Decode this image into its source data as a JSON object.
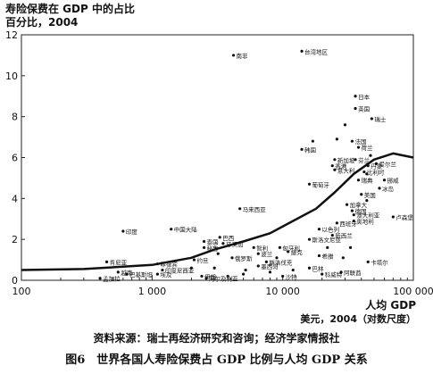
{
  "chart_data": {
    "type": "scatter",
    "title": "寿险保费在 GDP 中的占比",
    "ylabel": "百分比，2004",
    "xlabel": "人均 GDP",
    "xlabel_unit": "美元，2004（对数尺度）",
    "xscale": "log",
    "xlim": [
      100,
      100000
    ],
    "ylim": [
      0,
      12
    ],
    "x_tick_labels": [
      "100",
      "1 000",
      "10 000",
      "100 000"
    ],
    "x_ticks": [
      100,
      1000,
      10000,
      100000
    ],
    "y_tick_labels": [
      "0",
      "2",
      "4",
      "6",
      "8",
      "10",
      "12"
    ],
    "y_ticks": [
      0,
      2,
      4,
      6,
      8,
      10,
      12
    ],
    "grid": false,
    "annotations": [
      {
        "label": "南非",
        "x": 4200,
        "y": 11.0
      },
      {
        "label": "台湾地区",
        "x": 14000,
        "y": 11.2
      },
      {
        "label": "韩国",
        "x": 14000,
        "y": 6.4
      },
      {
        "label": "日本",
        "x": 36000,
        "y": 9.0
      },
      {
        "label": "英国",
        "x": 36000,
        "y": 8.4
      },
      {
        "label": "瑞士",
        "x": 48000,
        "y": 7.9
      },
      {
        "label": "法国",
        "x": 34000,
        "y": 6.8
      },
      {
        "label": "荷兰",
        "x": 38000,
        "y": 6.5
      },
      {
        "label": "新加坡",
        "x": 25000,
        "y": 5.9
      },
      {
        "label": "香港",
        "x": 24000,
        "y": 5.6
      },
      {
        "label": "芬兰",
        "x": 36000,
        "y": 5.9
      },
      {
        "label": "意大利",
        "x": 25000,
        "y": 5.4
      },
      {
        "label": "爱尔兰",
        "x": 52000,
        "y": 5.7
      },
      {
        "label": "丹麦",
        "x": 45000,
        "y": 5.6
      },
      {
        "label": "比利时",
        "x": 42000,
        "y": 5.3
      },
      {
        "label": "瑞典",
        "x": 38000,
        "y": 4.9
      },
      {
        "label": "葡萄牙",
        "x": 16000,
        "y": 4.7
      },
      {
        "label": "挪威",
        "x": 60000,
        "y": 4.9
      },
      {
        "label": "冰岛",
        "x": 55000,
        "y": 4.5
      },
      {
        "label": "美国",
        "x": 40000,
        "y": 4.2
      },
      {
        "label": "加拿大",
        "x": 31000,
        "y": 3.7
      },
      {
        "label": "德国",
        "x": 34000,
        "y": 3.4
      },
      {
        "label": "澳大利亚",
        "x": 35000,
        "y": 3.2
      },
      {
        "label": "奥地利",
        "x": 35000,
        "y": 2.9
      },
      {
        "label": "西班牙",
        "x": 26000,
        "y": 2.8
      },
      {
        "label": "卢森堡",
        "x": 70000,
        "y": 3.1
      },
      {
        "label": "马来西亚",
        "x": 4700,
        "y": 3.5
      },
      {
        "label": "印度",
        "x": 600,
        "y": 2.4
      },
      {
        "label": "中国大陆",
        "x": 1400,
        "y": 2.5
      },
      {
        "label": "以色列",
        "x": 19000,
        "y": 2.5
      },
      {
        "label": "新西兰",
        "x": 24000,
        "y": 2.2
      },
      {
        "label": "斯洛文尼亚",
        "x": 16000,
        "y": 2.0
      },
      {
        "label": "巴西",
        "x": 3300,
        "y": 2.1
      },
      {
        "label": "泰国",
        "x": 2500,
        "y": 1.9
      },
      {
        "label": "牙买加",
        "x": 3500,
        "y": 1.8
      },
      {
        "label": "秘鲁",
        "x": 2500,
        "y": 1.6
      },
      {
        "label": "匈牙利",
        "x": 9500,
        "y": 1.6
      },
      {
        "label": "捷克",
        "x": 11000,
        "y": 1.4
      },
      {
        "label": "希腊",
        "x": 19000,
        "y": 1.2
      },
      {
        "label": "卡塔尔",
        "x": 45000,
        "y": 0.9
      },
      {
        "label": "肯尼亚",
        "x": 450,
        "y": 0.9
      },
      {
        "label": "约旦",
        "x": 2100,
        "y": 1.0
      },
      {
        "label": "菲律宾",
        "x": 1100,
        "y": 0.8
      },
      {
        "label": "俄罗斯",
        "x": 4100,
        "y": 1.1
      },
      {
        "label": "墨西哥",
        "x": 6500,
        "y": 0.7
      },
      {
        "label": "波兰",
        "x": 6500,
        "y": 1.3
      },
      {
        "label": "智利",
        "x": 6000,
        "y": 1.6
      },
      {
        "label": "斯洛伐克",
        "x": 7500,
        "y": 0.9
      },
      {
        "label": "科威特",
        "x": 20000,
        "y": 0.3
      },
      {
        "label": "沙特",
        "x": 10000,
        "y": 0.2
      },
      {
        "label": "阿联酋",
        "x": 28000,
        "y": 0.4
      },
      {
        "label": "巴林",
        "x": 16000,
        "y": 0.6
      },
      {
        "label": "巴基斯坦",
        "x": 640,
        "y": 0.3
      },
      {
        "label": "印度尼西亚",
        "x": 1200,
        "y": 0.5
      },
      {
        "label": "埃及",
        "x": 1100,
        "y": 0.3
      },
      {
        "label": "伊朗",
        "x": 2400,
        "y": 0.2
      },
      {
        "label": "越南",
        "x": 550,
        "y": 0.4
      },
      {
        "label": "阿尔及利亚",
        "x": 2600,
        "y": 0.1
      },
      {
        "label": "孟加拉",
        "x": 400,
        "y": 0.1
      }
    ],
    "extra_points": [
      {
        "x": 2000,
        "y": 0.6
      },
      {
        "x": 3000,
        "y": 0.6
      },
      {
        "x": 3800,
        "y": 0.2
      },
      {
        "x": 5000,
        "y": 0.3
      },
      {
        "x": 8000,
        "y": 0.4
      },
      {
        "x": 12000,
        "y": 0.5
      },
      {
        "x": 3200,
        "y": 1.3
      },
      {
        "x": 5200,
        "y": 0.5
      },
      {
        "x": 9000,
        "y": 1.1
      },
      {
        "x": 22000,
        "y": 1.6
      },
      {
        "x": 29000,
        "y": 1.1
      },
      {
        "x": 33000,
        "y": 1.6
      },
      {
        "x": 17000,
        "y": 6.8
      },
      {
        "x": 26000,
        "y": 6.9
      },
      {
        "x": 30000,
        "y": 7.6
      },
      {
        "x": 44000,
        "y": 5.2
      },
      {
        "x": 47000,
        "y": 6.1
      },
      {
        "x": 44000,
        "y": 3.9
      }
    ],
    "trend_line": {
      "x": [
        100,
        300,
        1000,
        2000,
        3000,
        5000,
        8000,
        12000,
        18000,
        25000,
        35000,
        50000,
        70000,
        100000
      ],
      "y": [
        0.5,
        0.55,
        0.75,
        1.1,
        1.5,
        1.9,
        2.3,
        2.9,
        3.5,
        4.3,
        5.2,
        5.9,
        6.2,
        6.0
      ]
    }
  },
  "source_text": "资料来源：瑞士再经济研究和咨询；经济学家情报社",
  "figure_caption": "图6　世界各国人寿险保费占 GDP 比例与人均 GDP 关系"
}
